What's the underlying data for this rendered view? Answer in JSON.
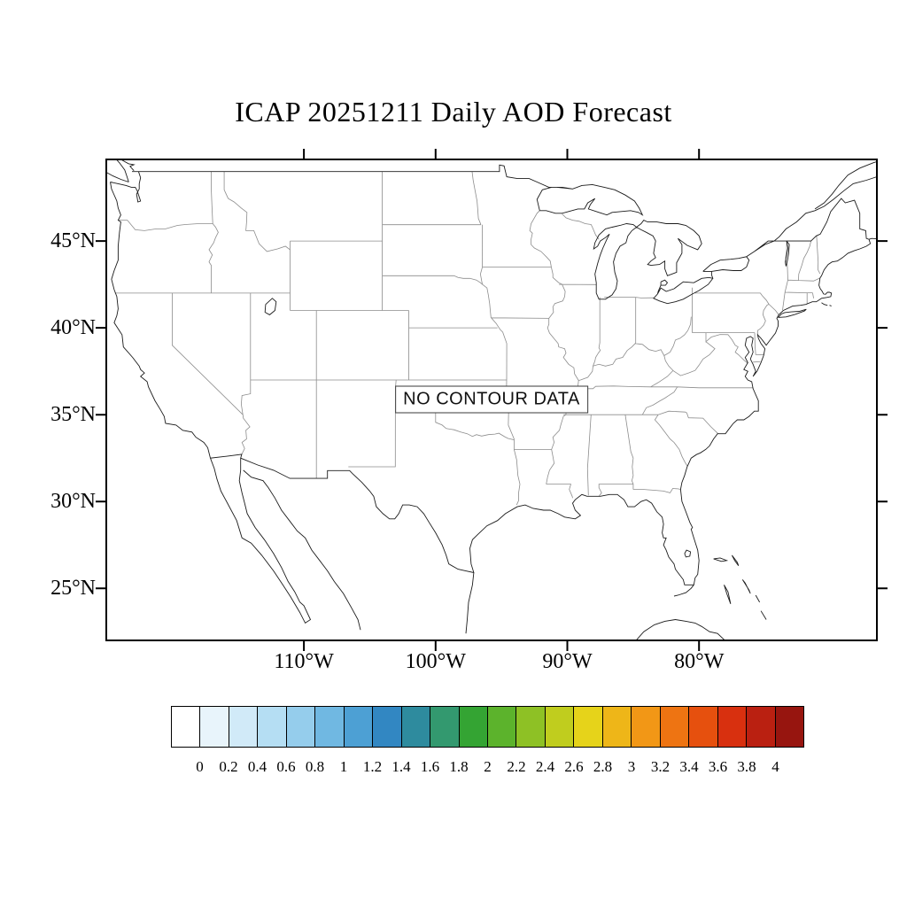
{
  "title": "ICAP 20251211 Daily AOD Forecast",
  "map": {
    "no_data_label": "NO CONTOUR DATA",
    "lat_ticks": [
      {
        "label": "45°N",
        "value": 45
      },
      {
        "label": "40°N",
        "value": 40
      },
      {
        "label": "35°N",
        "value": 35
      },
      {
        "label": "30°N",
        "value": 30
      },
      {
        "label": "25°N",
        "value": 25
      }
    ],
    "lon_ticks": [
      {
        "label": "110°W",
        "value": -110
      },
      {
        "label": "100°W",
        "value": -100
      },
      {
        "label": "90°W",
        "value": -90
      },
      {
        "label": "80°W",
        "value": -80
      }
    ]
  },
  "colorbar": {
    "tick_labels": [
      "0",
      "0.2",
      "0.4",
      "0.6",
      "0.8",
      "1",
      "1.2",
      "1.4",
      "1.6",
      "1.8",
      "2",
      "2.2",
      "2.4",
      "2.6",
      "2.8",
      "3",
      "3.2",
      "3.4",
      "3.6",
      "3.8",
      "4"
    ],
    "colors": [
      "#ffffff",
      "#e8f4fb",
      "#d1eaf8",
      "#b5def3",
      "#95cdec",
      "#70b8e2",
      "#4da0d4",
      "#3287c2",
      "#2e8b9e",
      "#33996f",
      "#34a433",
      "#5cb32c",
      "#8ec125",
      "#c0cd1e",
      "#e6d31a",
      "#eeb618",
      "#f29716",
      "#ee7412",
      "#e6500e",
      "#d8300f",
      "#ba2011",
      "#97150f"
    ]
  },
  "chart_data": {
    "type": "map",
    "title": "ICAP 20251211 Daily AOD Forecast",
    "annotation": "NO CONTOUR DATA",
    "colorbar_min": 0,
    "colorbar_max": 4,
    "colorbar_step": 0.2,
    "lat_tick_labels": [
      "45°N",
      "40°N",
      "35°N",
      "30°N",
      "25°N"
    ],
    "lon_tick_labels": [
      "110°W",
      "100°W",
      "90°W",
      "80°W"
    ]
  }
}
